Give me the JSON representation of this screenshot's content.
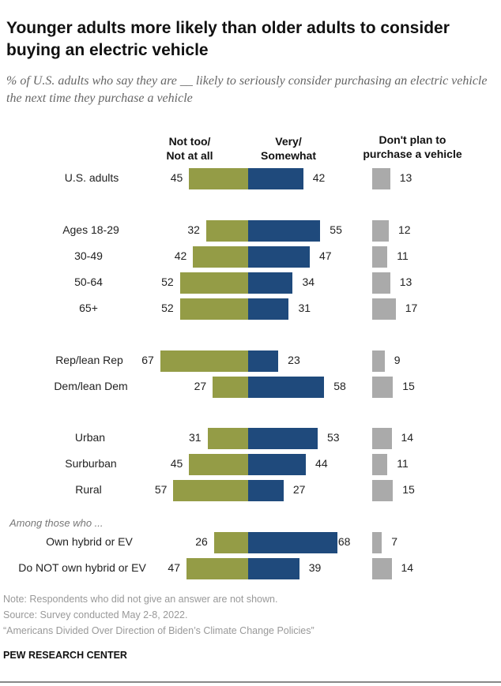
{
  "title": "Younger adults more likely than older adults to consider buying an electric vehicle",
  "subtitle": "% of U.S. adults who say they are __ likely to seriously consider purchasing an electric vehicle the next time they purchase a vehicle",
  "colors": {
    "not_likely": "#949c46",
    "likely": "#1f4a7c",
    "no_plan": "#aaaaaa"
  },
  "chart_data": {
    "type": "bar",
    "title": "Younger adults more likely than older adults to consider buying an electric vehicle",
    "series_labels": {
      "not_likely": "Not too/ Not at all",
      "likely": "Very/ Somewhat",
      "no_plan": "Don't plan to purchase a vehicle"
    },
    "group_note": "Among those who ...",
    "categories": [
      "U.S. adults",
      "Ages 18-29",
      "30-49",
      "50-64",
      "65+",
      "Rep/lean Rep",
      "Dem/lean Dem",
      "Urban",
      "Surburban",
      "Rural",
      "Own hybrid or EV",
      "Do NOT own hybrid or EV"
    ],
    "series": [
      {
        "name": "Not too/Not at all",
        "values": [
          45,
          32,
          42,
          52,
          52,
          67,
          27,
          31,
          45,
          57,
          26,
          47
        ]
      },
      {
        "name": "Very/Somewhat",
        "values": [
          42,
          55,
          47,
          34,
          31,
          23,
          58,
          53,
          44,
          27,
          68,
          39
        ]
      },
      {
        "name": "Don't plan to purchase a vehicle",
        "values": [
          13,
          12,
          11,
          13,
          17,
          9,
          15,
          14,
          11,
          15,
          7,
          14
        ]
      }
    ]
  },
  "headers": {
    "not_likely_1": "Not too/",
    "not_likely_2": "Not at all",
    "likely_1": "Very/",
    "likely_2": "Somewhat",
    "no_plan_1": "Don't plan to",
    "no_plan_2": "purchase a vehicle"
  },
  "footer": {
    "note": "Note: Respondents who did not give an answer are not shown.",
    "source": "Source: Survey conducted May 2-8, 2022.",
    "report": "“Americans Divided Over Direction of Biden’s Climate Change Policies”",
    "brand": "PEW RESEARCH CENTER"
  }
}
